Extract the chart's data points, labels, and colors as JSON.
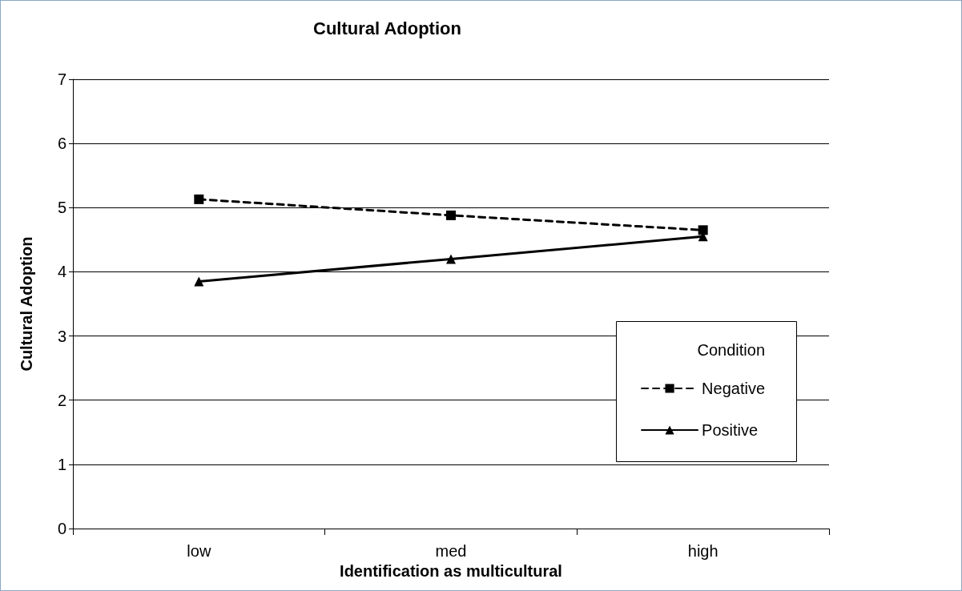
{
  "chart_data": {
    "type": "line",
    "title": "Cultural Adoption",
    "xlabel": "Identification as multicultural",
    "ylabel": "Cultural Adoption",
    "legend_title": "Condition",
    "categories": [
      "low",
      "med",
      "high"
    ],
    "series": [
      {
        "name": "Negative",
        "color": "#000000",
        "values": [
          5.13,
          4.88,
          4.65
        ],
        "marker": "square",
        "line_style": "dashed"
      },
      {
        "name": "Positive",
        "color": "#000000",
        "values": [
          3.85,
          4.2,
          4.55
        ],
        "marker": "triangle",
        "line_style": "solid"
      }
    ],
    "ylim": [
      0,
      7
    ],
    "yticks": [
      0,
      1,
      2,
      3,
      4,
      5,
      6,
      7
    ],
    "grid": "y",
    "legend": "bottom right"
  }
}
